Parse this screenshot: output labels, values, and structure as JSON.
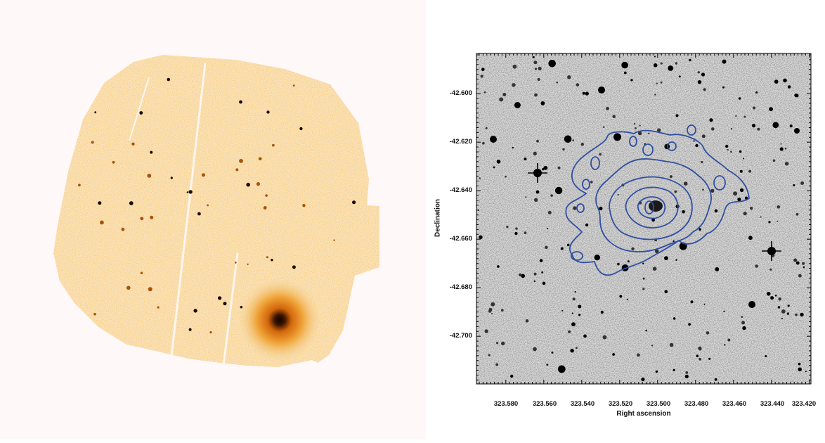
{
  "xray_image": {
    "colormap": [
      "#ffe9c8",
      "#f5c06a",
      "#e08a18",
      "#a8520a",
      "#1a0a00"
    ],
    "background": "#fff8f9"
  },
  "optical_image": {
    "contour_color": "#2f4fa3",
    "x_axis": {
      "label": "Right ascension",
      "ticks": [
        "323.580",
        "323.560",
        "323.540",
        "323.520",
        "323.500",
        "323.480",
        "323.460",
        "323.440",
        "323.420"
      ]
    },
    "y_axis": {
      "label": "Declination",
      "ticks": [
        "-42.600",
        "-42.620",
        "-42.640",
        "-42.660",
        "-42.680",
        "-42.700"
      ]
    }
  }
}
